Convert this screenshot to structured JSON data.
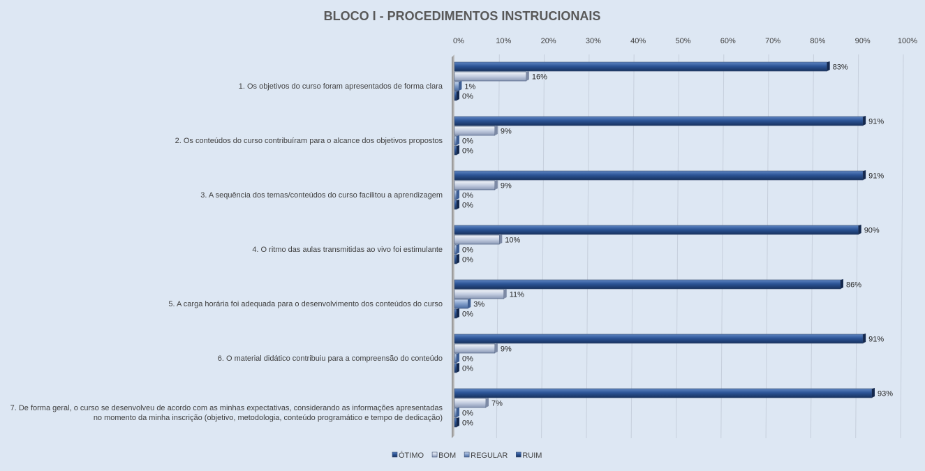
{
  "chart_data": {
    "type": "bar",
    "orientation": "horizontal",
    "title": "BLOCO I - PROCEDIMENTOS  INSTRUCIONAIS",
    "x_ticks": [
      "0%",
      "10%",
      "20%",
      "30%",
      "40%",
      "50%",
      "60%",
      "70%",
      "80%",
      "90%",
      "100%"
    ],
    "xlim": [
      0,
      100
    ],
    "grid": true,
    "legend_position": "bottom",
    "categories": [
      [
        "1. Os objetivos do curso foram apresentados de forma clara"
      ],
      [
        "2. Os conteúdos do curso contribuíram para o alcance dos objetivos propostos"
      ],
      [
        "3. A sequência dos temas/conteúdos do curso facilitou a aprendizagem"
      ],
      [
        "4. O ritmo das aulas transmitidas ao vivo foi estimulante"
      ],
      [
        "5. A carga horária foi adequada para o desenvolvimento dos conteúdos do curso"
      ],
      [
        "6. O material didático contribuiu para a compreensão do conteúdo"
      ],
      [
        "7. De forma geral, o curso se desenvolveu de acordo com as minhas expectativas, considerando as informações apresentadas",
        "no momento da minha inscrição (objetivo, metodologia, conteúdo programático e tempo de dedicação)"
      ]
    ],
    "series": [
      {
        "name": "ÓTIMO",
        "color": "#1f3f73",
        "values": [
          83,
          91,
          91,
          90,
          86,
          91,
          93
        ],
        "labels": [
          "83%",
          "91%",
          "91%",
          "90%",
          "86%",
          "91%",
          "93%"
        ]
      },
      {
        "name": "BOM",
        "color": "#b3bfd6",
        "values": [
          16,
          9,
          9,
          10,
          11,
          9,
          7
        ],
        "labels": [
          "16%",
          "9%",
          "9%",
          "10%",
          "11%",
          "9%",
          "7%"
        ]
      },
      {
        "name": "REGULAR",
        "color": "#7f9cc8",
        "values": [
          1,
          0,
          0,
          0,
          3,
          0,
          0
        ],
        "labels": [
          "1%",
          "0%",
          "0%",
          "0%",
          "3%",
          "0%",
          "0%"
        ]
      },
      {
        "name": "RUIM",
        "color": "#1f3f73",
        "values": [
          0,
          0,
          0,
          0,
          0,
          0,
          0
        ],
        "labels": [
          "0%",
          "0%",
          "0%",
          "0%",
          "0%",
          "0%",
          "0%"
        ]
      }
    ]
  }
}
